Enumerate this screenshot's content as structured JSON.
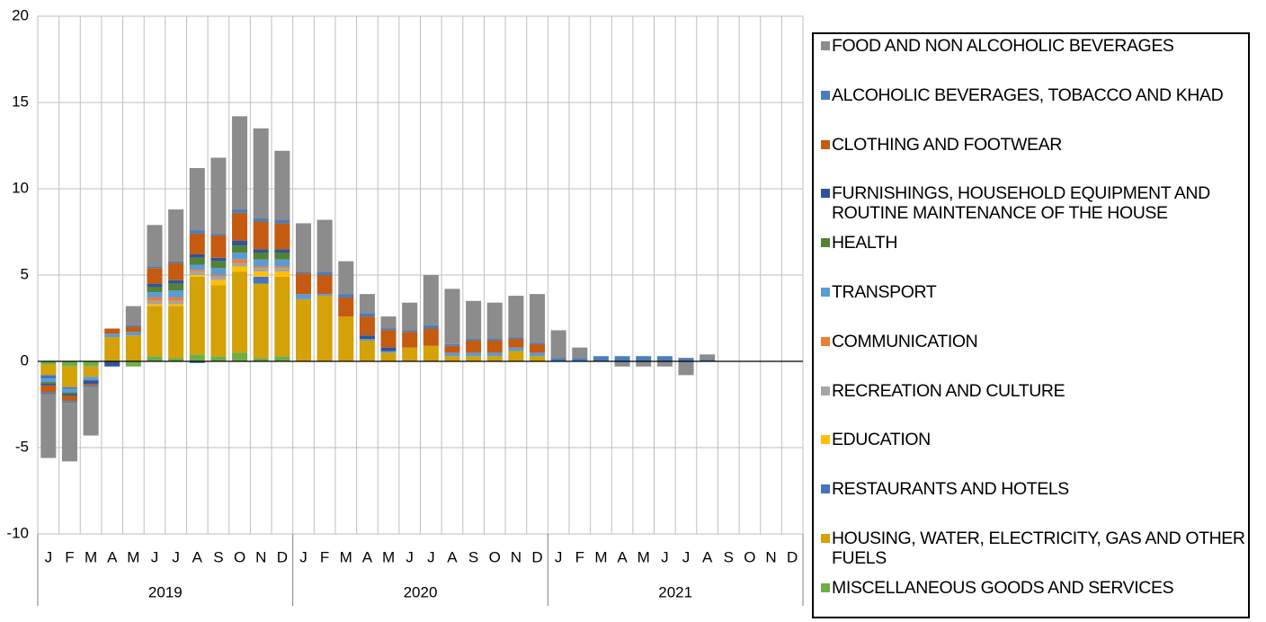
{
  "chart_data": {
    "type": "stacked_bar",
    "categories": [
      "J",
      "F",
      "M",
      "A",
      "M",
      "J",
      "J",
      "A",
      "S",
      "O",
      "N",
      "D",
      "J",
      "F",
      "M",
      "A",
      "M",
      "J",
      "J",
      "A",
      "S",
      "O",
      "N",
      "D",
      "J",
      "F",
      "M",
      "A",
      "M",
      "J",
      "J",
      "A",
      "S",
      "O",
      "N",
      "D"
    ],
    "years": [
      "2019",
      "2020",
      "2021"
    ],
    "ylim": [
      -10,
      20
    ],
    "yticks": [
      -10,
      -5,
      0,
      5,
      10,
      15,
      20
    ],
    "grid": true,
    "series": [
      {
        "name": "FOOD AND NON ALCOHOLIC BEVERAGES",
        "color": "#8c8c8c",
        "values": [
          -3.7,
          -3.4,
          -2.8,
          0,
          1.1,
          2.4,
          3.0,
          3.6,
          4.4,
          5.4,
          5.2,
          4.0,
          2.8,
          3.0,
          1.9,
          1.1,
          0.7,
          1.6,
          2.9,
          3.2,
          2.2,
          2.1,
          2.4,
          2.8,
          1.6,
          0.6,
          0,
          -0.3,
          -0.3,
          -0.3,
          -0.8,
          0.3,
          null,
          null,
          null,
          null
        ]
      },
      {
        "name": "ALCOHOLIC BEVERAGES, TOBACCO AND KHAD",
        "color": "#4a7ebb",
        "values": [
          -0.1,
          -0.1,
          -0.1,
          0,
          0.1,
          0.1,
          0.1,
          0.2,
          0.1,
          0.2,
          0.2,
          0.2,
          0.1,
          0.2,
          0.2,
          0.2,
          0.1,
          0.1,
          0.2,
          0.1,
          0.1,
          0.1,
          0.1,
          0.1,
          0.2,
          0.2,
          0.3,
          0.3,
          0.3,
          0.3,
          0.2,
          0.1,
          null,
          null,
          null,
          null
        ]
      },
      {
        "name": "CLOTHING AND FOOTWEAR",
        "color": "#c55a11",
        "values": [
          -0.4,
          -0.3,
          -0.1,
          0.3,
          0.3,
          0.9,
          1.0,
          1.2,
          1.3,
          1.6,
          1.6,
          1.5,
          1.2,
          1.1,
          1.1,
          1.1,
          1.0,
          0.9,
          1.0,
          0.4,
          0.7,
          0.7,
          0.5,
          0.5,
          0,
          0,
          0,
          0,
          0,
          0,
          0,
          0,
          null,
          null,
          null,
          null
        ]
      },
      {
        "name": "FURNISHINGS, HOUSEHOLD EQUIPMENT AND ROUTINE MAINTENANCE OF THE HOUSE",
        "color": "#2f5597",
        "values": [
          -0.1,
          -0.1,
          -0.2,
          -0.3,
          0,
          0.2,
          0.2,
          0.2,
          0.2,
          0.3,
          0.2,
          0.2,
          0,
          0,
          0,
          0.2,
          0.2,
          0,
          0,
          0,
          0,
          0,
          0,
          0,
          0,
          0,
          0,
          0,
          0,
          0,
          0,
          0,
          null,
          null,
          null,
          null
        ]
      },
      {
        "name": "HEALTH",
        "color": "#548235",
        "values": [
          -0.1,
          -0.1,
          0,
          0,
          0,
          0.3,
          0.4,
          0.4,
          0.4,
          0.4,
          0.4,
          0.4,
          0,
          0,
          0,
          0,
          0,
          0,
          0,
          0,
          0,
          0,
          0,
          0,
          0,
          0,
          0,
          0,
          0,
          0,
          0,
          0,
          null,
          null,
          null,
          null
        ]
      },
      {
        "name": "TRANSPORT",
        "color": "#5b9bd5",
        "values": [
          -0.2,
          -0.2,
          -0.2,
          0.2,
          0.2,
          0.3,
          0.4,
          0.3,
          0.4,
          0.4,
          0.4,
          0.4,
          0.3,
          0.1,
          0,
          0.1,
          0.1,
          0,
          0,
          0.2,
          0.2,
          0.2,
          0.2,
          0.2,
          0,
          0,
          0,
          0,
          0,
          0,
          0,
          0,
          null,
          null,
          null,
          null
        ]
      },
      {
        "name": "COMMUNICATION",
        "color": "#ed7d31",
        "values": [
          0,
          0,
          0,
          0,
          0,
          0.2,
          0.2,
          0.1,
          0.1,
          0.2,
          0.1,
          0.1,
          0,
          0,
          0,
          0,
          0,
          0,
          0,
          0,
          0,
          0,
          0,
          0,
          0,
          0,
          0,
          0,
          0,
          0,
          0,
          0,
          null,
          null,
          null,
          null
        ]
      },
      {
        "name": "RECREATION AND CULTURE",
        "color": "#a5a5a5",
        "values": [
          0,
          0,
          0,
          0,
          0,
          0.2,
          0.2,
          0.2,
          0.2,
          0.2,
          0.2,
          0.2,
          0,
          0,
          0,
          0,
          0,
          0,
          0,
          0,
          0,
          0,
          0,
          0,
          0,
          0,
          0,
          0,
          0,
          0,
          0,
          0,
          null,
          null,
          null,
          null
        ]
      },
      {
        "name": "EDUCATION",
        "color": "#ffc000",
        "values": [
          0,
          0,
          0,
          0,
          0,
          0.1,
          0.1,
          0.1,
          0.3,
          0.3,
          0.3,
          0.3,
          0,
          0,
          0,
          0,
          0,
          0,
          0,
          0,
          0,
          0,
          0,
          0,
          0,
          0,
          0,
          0,
          0,
          0,
          0,
          0,
          null,
          null,
          null,
          null
        ]
      },
      {
        "name": "RESTAURANTS AND HOTELS",
        "color": "#4472c4",
        "values": [
          -0.2,
          -0.1,
          0,
          0,
          0,
          0,
          0,
          -0.1,
          0,
          0,
          0.4,
          0,
          0,
          0,
          0,
          0,
          0,
          0,
          0,
          0,
          0,
          0,
          0,
          0,
          0,
          0,
          0,
          0,
          0,
          0,
          0,
          0,
          null,
          null,
          null,
          null
        ]
      },
      {
        "name": "HOUSING, WATER, ELECTRICITY, GAS AND OTHER FUELS",
        "color": "#d4a106",
        "values": [
          -0.6,
          -1.2,
          -0.6,
          1.4,
          1.5,
          2.9,
          3.0,
          4.5,
          4.1,
          4.7,
          4.3,
          4.6,
          3.6,
          3.8,
          2.6,
          1.2,
          0.5,
          0.8,
          0.9,
          0.3,
          0.3,
          0.3,
          0.6,
          0.3,
          0,
          0,
          0,
          0,
          0,
          0,
          0,
          0,
          null,
          null,
          null,
          null
        ]
      },
      {
        "name": "MISCELLANEOUS GOODS AND SERVICES",
        "color": "#70ad47",
        "values": [
          -0.2,
          -0.3,
          -0.3,
          0,
          -0.3,
          0.3,
          0.2,
          0.4,
          0.3,
          0.5,
          0.2,
          0.3,
          0,
          0,
          0,
          0,
          0,
          0,
          0,
          0,
          0,
          0,
          0,
          0,
          0,
          0,
          0,
          0,
          0,
          0,
          0,
          0,
          null,
          null,
          null,
          null
        ]
      }
    ]
  }
}
